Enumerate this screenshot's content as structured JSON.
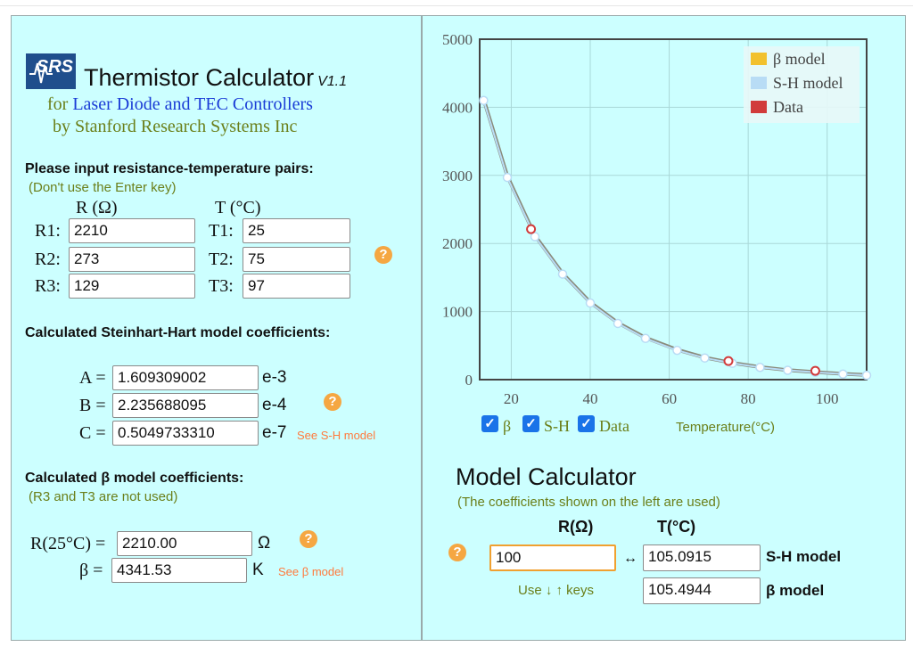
{
  "header": {
    "logo_text": "SRS",
    "title": "Thermistor Calculator",
    "version": "V1.1",
    "subtitle_for": "for",
    "subtitle_products": "Laser Diode and TEC Controllers",
    "subtitle_by": "by Stanford Research Systems Inc"
  },
  "inputs": {
    "heading": "Please input resistance-temperature pairs:",
    "note": "(Don't use the Enter key)",
    "r_header": "R (Ω)",
    "t_header": "T (°C)",
    "rows": [
      {
        "r_label": "R1:",
        "r_value": "2210",
        "t_label": "T1:",
        "t_value": "25"
      },
      {
        "r_label": "R2:",
        "r_value": "273",
        "t_label": "T2:",
        "t_value": "75"
      },
      {
        "r_label": "R3:",
        "r_value": "129",
        "t_label": "T3:",
        "t_value": "97"
      }
    ],
    "help_glyph": "?"
  },
  "sh": {
    "heading": "Calculated Steinhart-Hart model coefficients:",
    "coefficients": [
      {
        "label": "A =",
        "value": "1.609309002",
        "exp": "e-3"
      },
      {
        "label": "B =",
        "value": "2.235688095",
        "exp": "e-4"
      },
      {
        "label": "C =",
        "value": "0.5049733310",
        "exp": "e-7"
      }
    ],
    "see_link": "See S-H model",
    "help_glyph": "?"
  },
  "beta": {
    "heading": "Calculated β model coefficients:",
    "note": "(R3 and T3 are not used)",
    "r25_label": "R(25°C) =",
    "r25_value": "2210.00",
    "r25_unit": "Ω",
    "beta_label": "β =",
    "beta_value": "4341.53",
    "beta_unit": "K",
    "see_link": "See β model",
    "help_glyph": "?"
  },
  "chart_controls": {
    "beta_label": "β",
    "sh_label": "S-H",
    "data_label": "Data",
    "check_glyph": "✓"
  },
  "chart_data": {
    "type": "line",
    "xlabel": "Temperature(°C)",
    "ylabel": "",
    "xlim": [
      12,
      110
    ],
    "ylim": [
      0,
      5000
    ],
    "x_ticks": [
      20,
      40,
      60,
      80,
      100
    ],
    "y_ticks": [
      0,
      1000,
      2000,
      3000,
      4000,
      5000
    ],
    "grid": true,
    "legend_position": "top-right",
    "legend": [
      {
        "name": "β model",
        "color": "#f2c12e"
      },
      {
        "name": "S-H model",
        "color": "#b8dcf5"
      },
      {
        "name": "Data",
        "color": "#d13b3b"
      }
    ],
    "series": [
      {
        "name": "β model",
        "x": [
          13,
          19,
          26,
          33,
          40,
          47,
          54,
          62,
          69,
          76,
          83,
          90,
          97,
          104,
          110
        ],
        "y": [
          4120,
          2990,
          2115,
          1560,
          1135,
          835,
          615,
          440,
          325,
          245,
          185,
          140,
          112,
          85,
          68
        ]
      },
      {
        "name": "S-H model",
        "x": [
          13,
          19,
          26,
          33,
          40,
          47,
          54,
          62,
          69,
          76,
          83,
          90,
          97,
          104,
          110
        ],
        "y": [
          4100,
          2970,
          2100,
          1550,
          1125,
          825,
          605,
          430,
          318,
          240,
          180,
          137,
          108,
          82,
          64
        ]
      },
      {
        "name": "Data",
        "x": [
          25,
          75,
          97
        ],
        "y": [
          2210,
          273,
          129
        ]
      }
    ]
  },
  "model_calculator": {
    "title": "Model Calculator",
    "note": "(The coefficients shown on the left are used)",
    "r_header": "R(Ω)",
    "t_header": "T(°C)",
    "r_value": "100",
    "arrow": "↔",
    "keys_hint": "Use ↓ ↑ keys",
    "sh_value": "105.0915",
    "sh_label": "S-H model",
    "beta_value": "105.4944",
    "beta_label": "β model",
    "help_glyph": "?"
  }
}
